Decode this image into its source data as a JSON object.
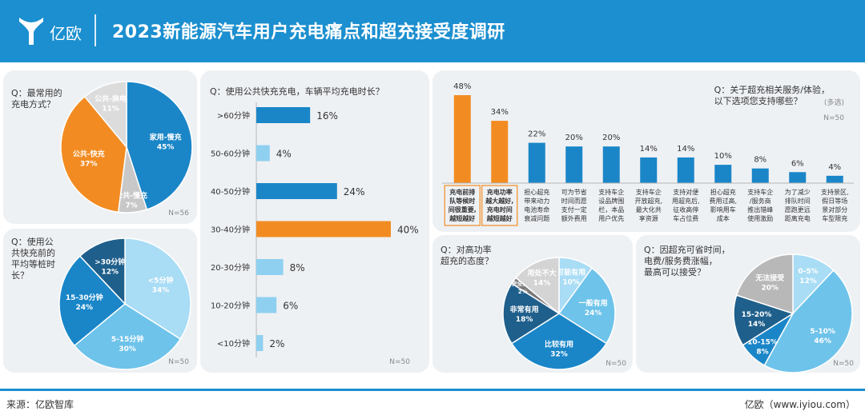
{
  "header": {
    "logo_text": "亿欧",
    "title": "2023新能源汽车用户充电痛点和超充接受度调研"
  },
  "footer": {
    "source": "来源：亿欧智库",
    "site": "亿欧（www.iyiou.com）"
  },
  "colors": {
    "blue_header": "#1b8fcf",
    "blue_dark": "#1f5f8b",
    "blue_mid": "#1a86c8",
    "blue_light": "#6ec3ea",
    "blue_pale": "#a9dcf5",
    "orange": "#f28c22",
    "gray": "#c8c8c8"
  },
  "panels": {
    "charging_method": {
      "question": "Q：最常用的\n充电方式？",
      "n": "N=56"
    },
    "wait_time": {
      "question": "Q：使用公\n共快充前的\n平均等桩时\n长？",
      "n": "N=50"
    },
    "charge_duration": {
      "question": "Q：使用公共快充充电，车辆平均充电时长？",
      "n": "N=50"
    },
    "services": {
      "question": "Q：关于超充相关服务/体验，\n以下选项您支持哪些？",
      "multi": "(多选)",
      "n": "N=50"
    },
    "attitude": {
      "question": "Q：对高功率\n超充的态度？",
      "n": "N=50"
    },
    "price": {
      "question": "Q：因超充可省时间，\n电费/服务费涨幅，\n最高可以接受？",
      "n": "N=50"
    }
  },
  "chart_data": [
    {
      "id": "charging_method",
      "type": "pie",
      "title": "Q：最常用的充电方式？",
      "slices": [
        {
          "label": "家用-慢充",
          "value": 45,
          "display": "45%",
          "color": "#1a86c8"
        },
        {
          "label": "公共-慢充",
          "value": 7,
          "display": "7%",
          "color": "#c8c8c8"
        },
        {
          "label": "公共-快充",
          "value": 37,
          "display": "37%",
          "color": "#f28c22"
        },
        {
          "label": "公共-换电",
          "value": 11,
          "display": "11%",
          "color": "#dcdcdc"
        }
      ]
    },
    {
      "id": "wait_time",
      "type": "pie",
      "title": "Q：使用公共快充前的平均等桩时长？",
      "slices": [
        {
          "label": "<5分钟",
          "value": 34,
          "display": "34%",
          "color": "#a9dcf5"
        },
        {
          "label": "5-15分钟",
          "value": 30,
          "display": "30%",
          "color": "#6ec3ea"
        },
        {
          "label": "15-30分钟",
          "value": 24,
          "display": "24%",
          "color": "#1a86c8"
        },
        {
          "label": ">30分钟",
          "value": 12,
          "display": "12%",
          "color": "#1f5f8b"
        }
      ]
    },
    {
      "id": "charge_duration",
      "type": "bar",
      "orientation": "horizontal",
      "title": "Q：使用公共快充充电，车辆平均充电时长？",
      "categories": [
        ">60分钟",
        "50-60分钟",
        "40-50分钟",
        "30-40分钟",
        "20-30分钟",
        "10-20分钟",
        "<10分钟"
      ],
      "values": [
        16,
        4,
        24,
        40,
        8,
        6,
        2
      ],
      "labels": [
        "16%",
        "4%",
        "24%",
        "40%",
        "8%",
        "6%",
        "2%"
      ],
      "highlight_index": 3
    },
    {
      "id": "services",
      "type": "bar",
      "orientation": "vertical",
      "title": "Q：关于超充相关服务/体验，以下选项您支持哪些？",
      "categories": [
        "充电前排队等候时间很重要，越短越好",
        "充电功率越大越好，充电时间越短越好",
        "担心超充带来动力电池寿命衰减问题",
        "可为节省时间而愿支付一定额外费用",
        "支持车企设品牌围栏，本品用户优先",
        "支持车企开放超充，最大化共享资源",
        "支持对便用超充后，征收高停车占位费",
        "担心超充费用过高，影响用车成本",
        "支持车企/服务商推出错峰使用激励",
        "为了减少排队时间愿跑更远距离充电",
        "支持景区，假日等场景对部分车型限充"
      ],
      "category_lines": [
        [
          "充电前排",
          "队等候时",
          "间很重要,",
          "越短越好"
        ],
        [
          "充电功率",
          "越大越好,",
          "充电时间",
          "越短越好"
        ],
        [
          "担心超充",
          "带来动力",
          "电池寿命",
          "衰减问题"
        ],
        [
          "可为节省",
          "时间而愿",
          "支付一定",
          "额外费用"
        ],
        [
          "支持车企",
          "设品牌围",
          "栏，本品",
          "用户优先"
        ],
        [
          "支持车企",
          "开放超充,",
          "最大化共",
          "享资源"
        ],
        [
          "支持对便",
          "用超充后,",
          "征收高停",
          "车占位费"
        ],
        [
          "担心超充",
          "费用过高,",
          "影响用车",
          "成本"
        ],
        [
          "支持车企",
          "/服务商",
          "推出错峰",
          "使用激励"
        ],
        [
          "为了减少",
          "排队时间",
          "愿跑更远",
          "距离充电"
        ],
        [
          "支持景区,",
          "假日等场",
          "景对部分",
          "车型限充"
        ]
      ],
      "values": [
        48,
        34,
        22,
        20,
        20,
        14,
        14,
        10,
        8,
        6,
        4
      ],
      "labels": [
        "48%",
        "34%",
        "22%",
        "20%",
        "20%",
        "14%",
        "14%",
        "10%",
        "8%",
        "6%",
        "4%"
      ],
      "highlight_indices": [
        0,
        1
      ]
    },
    {
      "id": "attitude",
      "type": "pie",
      "title": "Q：对高功率超充的态度？",
      "slices": [
        {
          "label": "可能有用",
          "value": 10,
          "display": "10%",
          "color": "#a9dcf5"
        },
        {
          "label": "一般有用",
          "value": 24,
          "display": "24%",
          "color": "#6ec3ea"
        },
        {
          "label": "比较有用",
          "value": 32,
          "display": "32%",
          "color": "#1a86c8"
        },
        {
          "label": "非常有用",
          "value": 18,
          "display": "18%",
          "color": "#1f5f8b"
        },
        {
          "label": "完全没用",
          "value": 2,
          "display": "2%",
          "color": "#7a7a7a"
        },
        {
          "label": "用处不大",
          "value": 14,
          "display": "14%",
          "color": "#d4d4d4"
        }
      ]
    },
    {
      "id": "price",
      "type": "pie",
      "title": "Q：因超充可省时间，电费/服务费涨幅，最高可以接受？",
      "slices": [
        {
          "label": "0-5%",
          "value": 12,
          "display": "12%",
          "color": "#a9dcf5"
        },
        {
          "label": "5-10%",
          "value": 46,
          "display": "46%",
          "color": "#6ec3ea"
        },
        {
          "label": "10-15%",
          "value": 8,
          "display": "8%",
          "color": "#1a86c8"
        },
        {
          "label": "15-20%",
          "value": 14,
          "display": "14%",
          "color": "#1f5f8b"
        },
        {
          "label": "无法接受",
          "value": 20,
          "display": "20%",
          "color": "#b8b8b8"
        }
      ]
    }
  ]
}
